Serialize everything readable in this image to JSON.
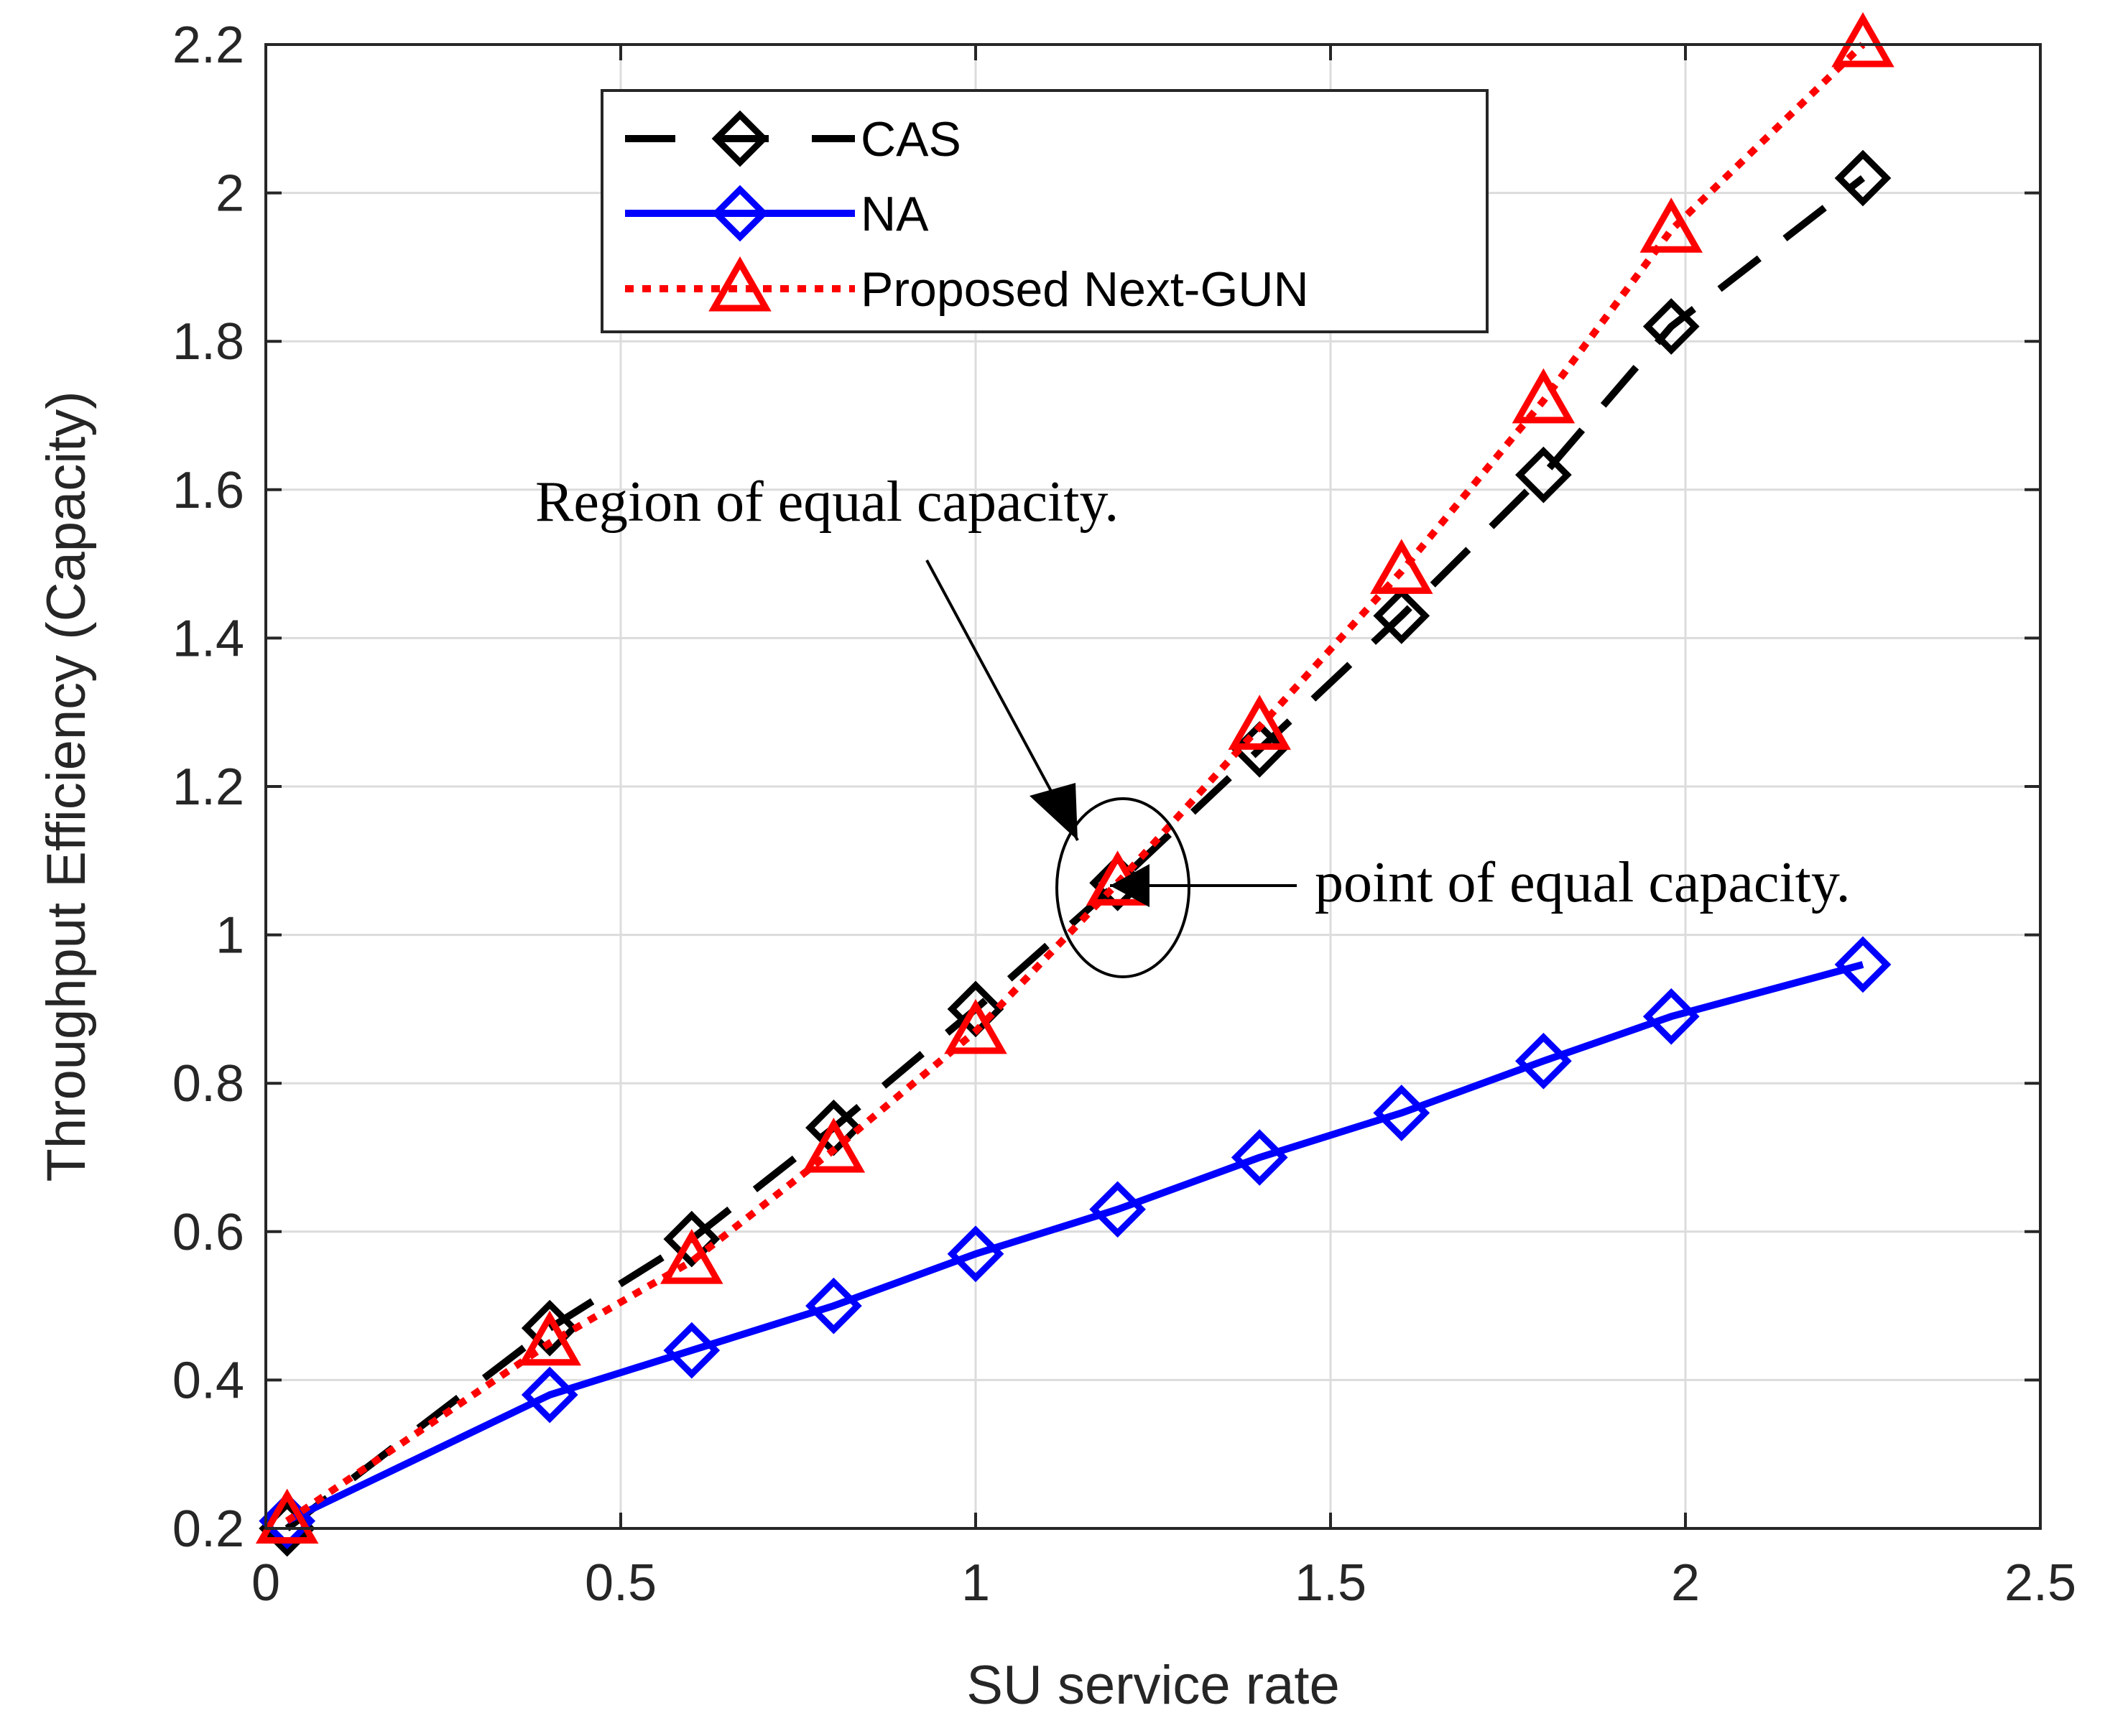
{
  "chart_data": {
    "type": "line",
    "title": "",
    "xlabel": "SU service rate",
    "ylabel": "Throughput Efficiency (Capacity)",
    "xlim": [
      0,
      2.5
    ],
    "ylim": [
      0.2,
      2.2
    ],
    "xticks": [
      0,
      0.5,
      1,
      1.5,
      2,
      2.5
    ],
    "xtick_labels": [
      "0",
      "0.5",
      "1",
      "1.5",
      "2",
      "2.5"
    ],
    "yticks": [
      0.2,
      0.4,
      0.6,
      0.8,
      1.0,
      1.2,
      1.4,
      1.6,
      1.8,
      2.0,
      2.2
    ],
    "ytick_labels": [
      "0.2",
      "0.4",
      "0.6",
      "0.8",
      "1",
      "1.2",
      "1.4",
      "1.6",
      "1.8",
      "2",
      "2.2"
    ],
    "grid": true,
    "legend_position": "top-left",
    "series": [
      {
        "name": "CAS",
        "color": "#000000",
        "dash": "dashed",
        "marker": "diamond",
        "x": [
          0.03,
          0.4,
          0.6,
          0.8,
          1.0,
          1.2,
          1.4,
          1.6,
          1.8,
          1.98,
          2.25
        ],
        "y": [
          0.2,
          0.47,
          0.59,
          0.74,
          0.9,
          1.07,
          1.25,
          1.43,
          1.62,
          1.82,
          2.02
        ]
      },
      {
        "name": "NA",
        "color": "#0000ff",
        "dash": "solid",
        "marker": "diamond",
        "x": [
          0.03,
          0.4,
          0.6,
          0.8,
          1.0,
          1.2,
          1.4,
          1.6,
          1.8,
          1.98,
          2.25
        ],
        "y": [
          0.21,
          0.38,
          0.44,
          0.5,
          0.57,
          0.63,
          0.7,
          0.76,
          0.83,
          0.89,
          0.96
        ]
      },
      {
        "name": "Proposed Next-GUN",
        "color": "#ff0000",
        "dash": "dotted",
        "marker": "triangle",
        "x": [
          0.03,
          0.4,
          0.6,
          0.8,
          1.0,
          1.2,
          1.4,
          1.6,
          1.8,
          1.98,
          2.25
        ],
        "y": [
          0.21,
          0.45,
          0.56,
          0.71,
          0.87,
          1.07,
          1.28,
          1.49,
          1.72,
          1.95,
          2.2
        ]
      }
    ],
    "annotations": [
      {
        "id": "region",
        "text": "Region of equal capacity."
      },
      {
        "id": "point",
        "text": "point of equal capacity."
      }
    ]
  }
}
